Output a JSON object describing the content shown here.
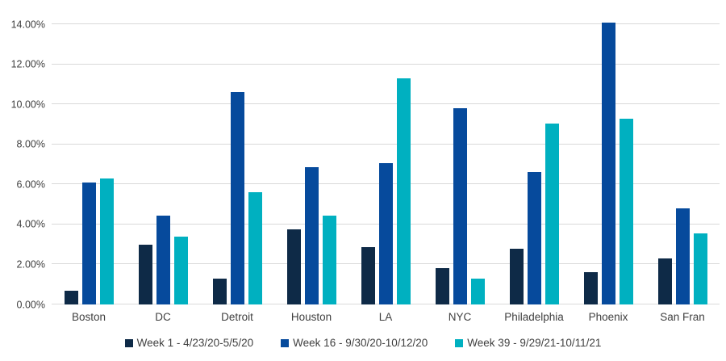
{
  "chart_data": {
    "type": "bar",
    "title": "",
    "xlabel": "",
    "ylabel": "",
    "categories": [
      "Boston",
      "DC",
      "Detroit",
      "Houston",
      "LA",
      "NYC",
      "Philadelphia",
      "Phoenix",
      "San Fran"
    ],
    "series": [
      {
        "name": "Week 1 - 4/23/20-5/5/20",
        "color": "#0e2a47",
        "values": [
          0.7,
          3.0,
          1.3,
          3.75,
          2.85,
          1.8,
          2.8,
          1.6,
          2.3
        ]
      },
      {
        "name": "Week 16 - 9/30/20-10/12/20",
        "color": "#064a9c",
        "values": [
          6.1,
          4.45,
          10.6,
          6.85,
          7.05,
          9.8,
          6.6,
          14.1,
          4.8
        ]
      },
      {
        "name": "Week 39 - 9/29/21-10/11/21",
        "color": "#00b0c0",
        "values": [
          6.3,
          3.4,
          5.6,
          4.45,
          11.3,
          1.3,
          9.05,
          9.3,
          3.55
        ]
      }
    ],
    "ylim": [
      0,
      14
    ],
    "ytick_step": 2,
    "ytick_labels": [
      "0.00%",
      "2.00%",
      "4.00%",
      "6.00%",
      "8.00%",
      "10.00%",
      "12.00%",
      "14.00%"
    ],
    "grid": true,
    "gridline_color": "#d9d9d9",
    "text_color": "#404040",
    "legend_position": "bottom"
  }
}
